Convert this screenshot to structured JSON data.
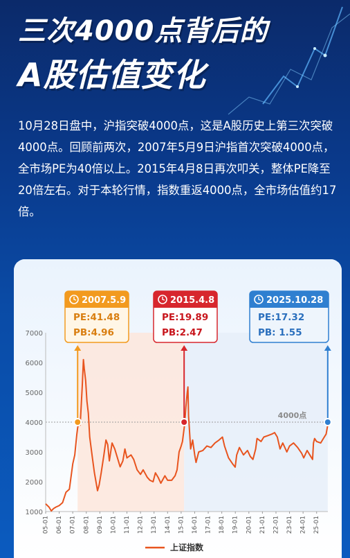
{
  "header": {
    "title_line1": "三次4000点背后的",
    "title_line2": "A股估值变化"
  },
  "intro": "10月28日盘中，沪指突破4000点，这是A股历史上第三次突破4000点。回顾前两次，2007年5月9日沪指首次突破4000点，全市场PE为40倍以上。2015年4月8日再次叩关，整体PE降至20倍左右。对于本轮行情，指数重返4000点，全市场估值约17倍。",
  "callouts": [
    {
      "date": "2007.5.9",
      "pe": "PE:41.48",
      "pb": "PB:4.96",
      "color": "#f29a1f",
      "text_color": "#d97e10",
      "bg": "#fff6e6"
    },
    {
      "date": "2015.4.8",
      "pe": "PE:19.89",
      "pb": "PB:2.47",
      "color": "#d7262d",
      "text_color": "#c8161d",
      "bg": "#ffffff"
    },
    {
      "date": "2025.10.28",
      "pe": "PE:17.32",
      "pb": "PB: 1.55",
      "color": "#2f7fd0",
      "text_color": "#2a6fbd",
      "bg": "#eef5fc"
    }
  ],
  "colors": {
    "line": "#e8541e",
    "marker": "#f29a1f"
  },
  "chart_data": {
    "type": "line",
    "series": [
      {
        "name": "上证指数",
        "x": [
          2005.0,
          2005.25,
          2005.42,
          2005.58,
          2005.75,
          2006.0,
          2006.25,
          2006.5,
          2006.75,
          2007.0,
          2007.15,
          2007.3,
          2007.36,
          2007.45,
          2007.55,
          2007.7,
          2007.79,
          2007.85,
          2007.95,
          2008.05,
          2008.15,
          2008.25,
          2008.45,
          2008.6,
          2008.75,
          2008.83,
          2008.95,
          2009.1,
          2009.3,
          2009.45,
          2009.58,
          2009.7,
          2009.9,
          2010.1,
          2010.3,
          2010.5,
          2010.7,
          2010.85,
          2011.0,
          2011.3,
          2011.5,
          2011.75,
          2012.0,
          2012.2,
          2012.5,
          2012.7,
          2012.93,
          2013.1,
          2013.3,
          2013.5,
          2013.8,
          2014.0,
          2014.3,
          2014.55,
          2014.7,
          2014.85,
          2015.0,
          2015.1,
          2015.25,
          2015.35,
          2015.45,
          2015.5,
          2015.55,
          2015.62,
          2015.7,
          2015.85,
          2016.0,
          2016.1,
          2016.3,
          2016.6,
          2016.9,
          2017.2,
          2017.5,
          2017.8,
          2018.05,
          2018.2,
          2018.5,
          2018.8,
          2018.99,
          2019.1,
          2019.3,
          2019.6,
          2019.9,
          2020.1,
          2020.3,
          2020.5,
          2020.6,
          2020.9,
          2021.1,
          2021.4,
          2021.7,
          2021.9,
          2022.1,
          2022.3,
          2022.5,
          2022.8,
          2023.0,
          2023.3,
          2023.6,
          2023.9,
          2024.05,
          2024.3,
          2024.5,
          2024.7,
          2024.77,
          2024.85,
          2025.0,
          2025.3,
          2025.5,
          2025.7,
          2025.82
        ],
        "values": [
          1260,
          1150,
          1020,
          1100,
          1150,
          1200,
          1300,
          1650,
          1750,
          2600,
          2900,
          3600,
          3800,
          4000,
          3900,
          5200,
          6100,
          5800,
          5400,
          4700,
          4300,
          3500,
          2800,
          2300,
          1900,
          1700,
          1900,
          2300,
          2900,
          3400,
          3250,
          2700,
          3300,
          3100,
          2800,
          2500,
          2700,
          3100,
          2800,
          2900,
          2750,
          2400,
          2250,
          2400,
          2150,
          2050,
          2000,
          2300,
          2150,
          1950,
          2200,
          2050,
          2050,
          2200,
          2400,
          3000,
          3200,
          3350,
          3900,
          4500,
          5000,
          5178,
          4200,
          3700,
          3100,
          3400,
          2900,
          2650,
          3000,
          3050,
          3200,
          3150,
          3300,
          3400,
          3500,
          3200,
          2800,
          2600,
          2490,
          2900,
          3150,
          2900,
          3050,
          2850,
          2750,
          3100,
          3450,
          3350,
          3500,
          3550,
          3600,
          3650,
          3500,
          3100,
          3300,
          3000,
          3200,
          3300,
          3150,
          2950,
          2800,
          3050,
          2900,
          2750,
          3300,
          3450,
          3350,
          3300,
          3450,
          3600,
          3900
        ]
      }
    ],
    "xticks": [
      "05-01",
      "06-01",
      "07-01",
      "08-01",
      "09-01",
      "10-01",
      "11-01",
      "12-01",
      "13-01",
      "14-01",
      "15-01",
      "16-01",
      "17-01",
      "18-01",
      "19-01",
      "20-01",
      "21-01",
      "22-01",
      "23-01",
      "24-01",
      "25-01"
    ],
    "xlim": [
      2005.0,
      2025.83
    ],
    "yticks": [
      1000,
      2000,
      3000,
      4000,
      5000,
      6000,
      7000
    ],
    "ylim": [
      1000,
      7000
    ],
    "reference_line": {
      "value": 4000,
      "label": "4000点"
    },
    "markers": [
      {
        "x": 2007.36,
        "y": 4000
      },
      {
        "x": 2015.22,
        "y": 4000
      },
      {
        "x": 2025.82,
        "y": 4000
      }
    ],
    "shaded_regions": [
      {
        "from": 2007.36,
        "to": 2015.22,
        "color": "#fde6dc"
      },
      {
        "from": 2015.22,
        "to": 2025.82,
        "color": "#e6eff9"
      }
    ],
    "legend": {
      "label": "上证指数",
      "placement": "bottom-center"
    },
    "grid": false
  }
}
